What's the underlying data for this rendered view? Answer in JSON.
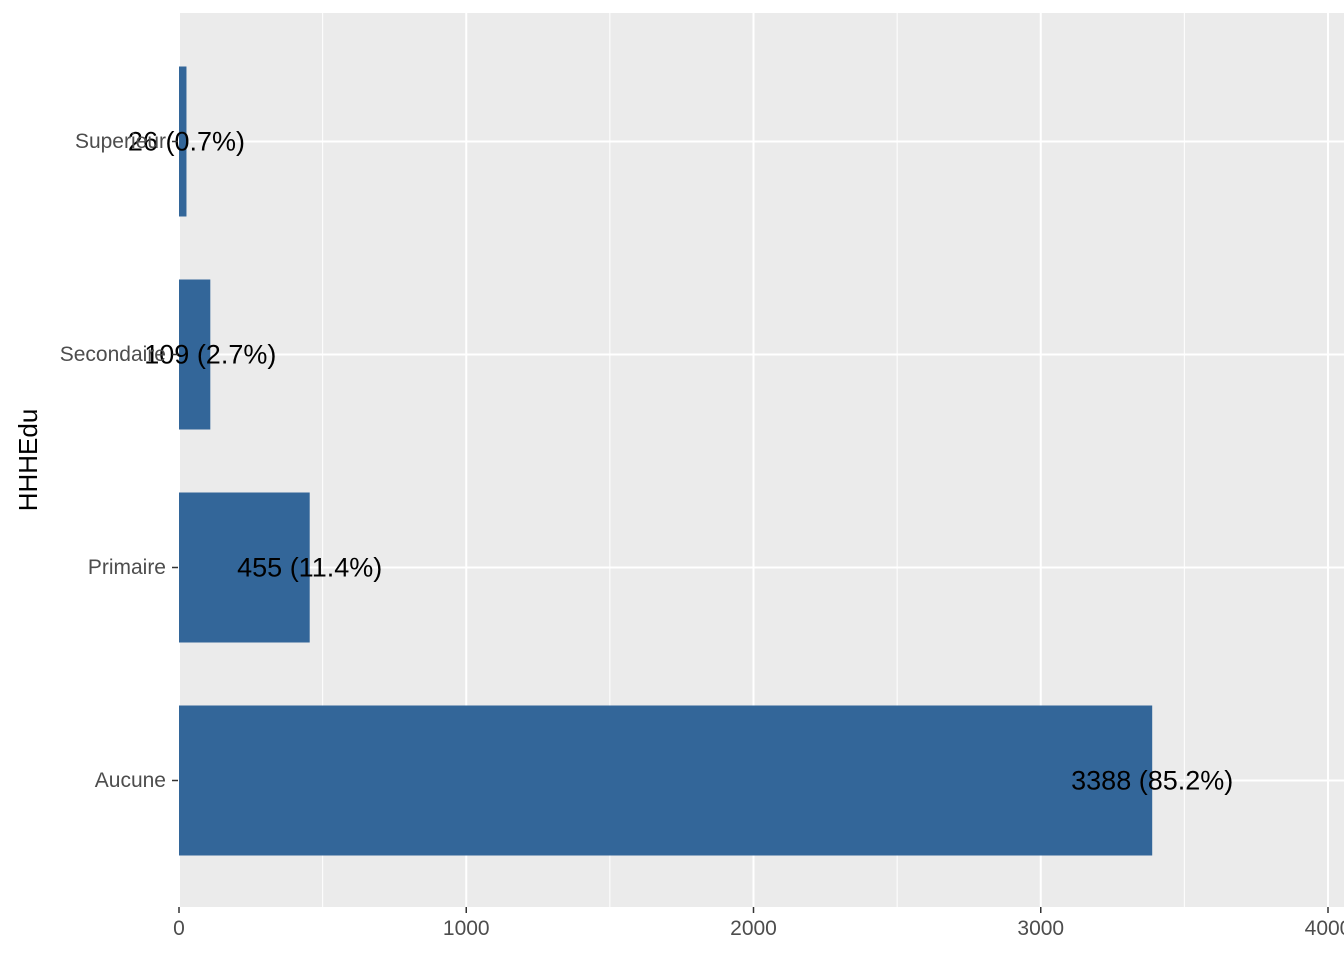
{
  "chart_data": {
    "type": "bar",
    "orientation": "horizontal",
    "title": "",
    "xlabel": "",
    "ylabel": "HHHEdu",
    "categories": [
      "Aucune",
      "Primaire",
      "Secondaire",
      "Superieur"
    ],
    "values": [
      3388,
      455,
      109,
      26
    ],
    "data_labels": [
      "3388 (85.2%)",
      "455 (11.4%)",
      "109 (2.7%)",
      "26 (0.7%)"
    ],
    "xlim": [
      0,
      4000
    ],
    "x_ticks": [
      0,
      1000,
      2000,
      3000,
      4000
    ],
    "x_tick_labels": [
      "0",
      "1000",
      "2000",
      "3000",
      "4000"
    ],
    "bar_color": "#336699",
    "panel_color": "#EBEBEB",
    "grid": true,
    "legend": "none"
  }
}
